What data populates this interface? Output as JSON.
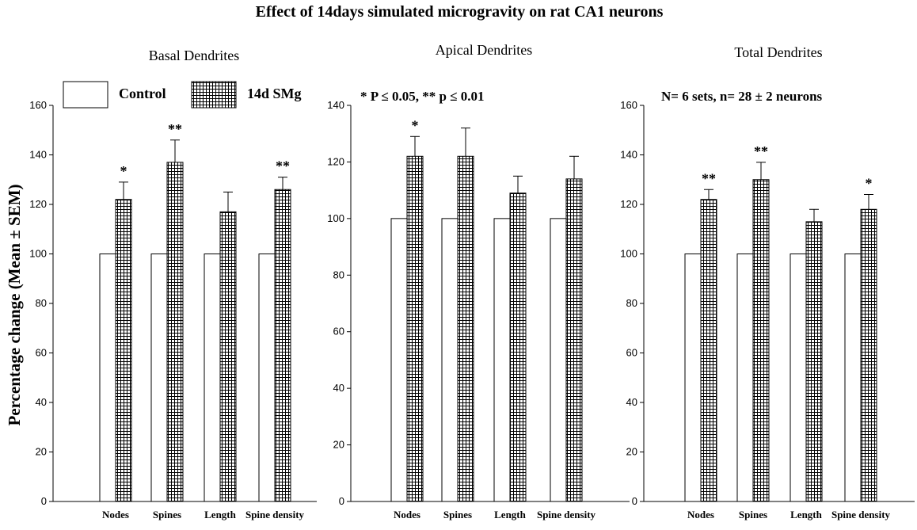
{
  "figure": {
    "title": "Effect of 14days simulated microgravity on rat CA1 neurons",
    "ylabel": "Percentage change (Mean ± SEM)",
    "legend": {
      "control": "Control",
      "treated": "14d SMg"
    },
    "significance_note": "*  P ≤ 0.05, ** p ≤ 0.01",
    "sample_note": "N= 6 sets, n= 28 ± 2 neurons"
  },
  "chart_data": [
    {
      "type": "bar",
      "title": "Basal Dendrites",
      "categories": [
        "Nodes",
        "Spines",
        "Length",
        "Spine density"
      ],
      "series": [
        {
          "name": "Control",
          "values": [
            100,
            100,
            100,
            100
          ]
        },
        {
          "name": "14d SMg",
          "values": [
            122,
            137,
            117,
            126
          ],
          "errors": [
            7,
            9,
            8,
            5
          ]
        }
      ],
      "significance": [
        "*",
        "**",
        "",
        "**"
      ],
      "ylim": [
        0,
        160
      ],
      "yticks": [
        0,
        20,
        40,
        60,
        80,
        100,
        120,
        140,
        160
      ]
    },
    {
      "type": "bar",
      "title": "Apical Dendrites",
      "categories": [
        "Nodes",
        "Spines",
        "Length",
        "Spine density"
      ],
      "series": [
        {
          "name": "Control",
          "values": [
            100,
            100,
            100,
            100
          ]
        },
        {
          "name": "14d SMg",
          "values": [
            122,
            122,
            109,
            114
          ],
          "errors": [
            7,
            10,
            6,
            8
          ]
        }
      ],
      "significance": [
        "*",
        "",
        "",
        ""
      ],
      "ylim": [
        0,
        140
      ],
      "yticks": [
        0,
        20,
        40,
        60,
        80,
        100,
        120,
        140
      ]
    },
    {
      "type": "bar",
      "title": "Total Dendrites",
      "categories": [
        "Nodes",
        "Spines",
        "Length",
        "Spine density"
      ],
      "series": [
        {
          "name": "Control",
          "values": [
            100,
            100,
            100,
            100
          ]
        },
        {
          "name": "14d SMg",
          "values": [
            122,
            130,
            113,
            118
          ],
          "errors": [
            4,
            7,
            5,
            6
          ]
        }
      ],
      "significance": [
        "**",
        "**",
        "",
        "*"
      ],
      "ylim": [
        0,
        160
      ],
      "yticks": [
        0,
        20,
        40,
        60,
        80,
        100,
        120,
        140,
        160
      ]
    }
  ]
}
